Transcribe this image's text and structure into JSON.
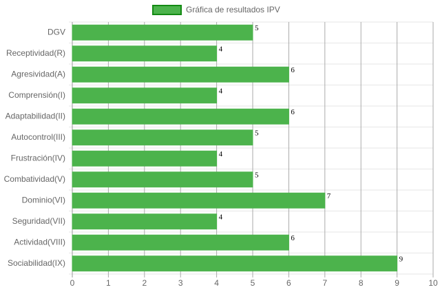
{
  "chart_data": {
    "type": "bar",
    "orientation": "horizontal",
    "series": [
      {
        "name": "Gráfica de resultados IPV",
        "color": "#4cb34c",
        "border_color": "#138a13",
        "values": [
          5,
          4,
          6,
          4,
          6,
          5,
          4,
          5,
          7,
          4,
          6,
          9
        ]
      }
    ],
    "categories": [
      "DGV",
      "Receptividad(R)",
      "Agresividad(A)",
      "Comprensión(I)",
      "Adaptabilidad(II)",
      "Autocontrol(III)",
      "Frustración(IV)",
      "Combatividad(V)",
      "Dominio(VI)",
      "Seguridad(VII)",
      "Actividad(VIII)",
      "Sociabilidad(IX)"
    ],
    "xlim": [
      0,
      10
    ],
    "xticks": [
      0,
      1,
      2,
      3,
      4,
      5,
      6,
      7,
      8,
      9,
      10
    ],
    "grid": true,
    "legend": "top"
  }
}
